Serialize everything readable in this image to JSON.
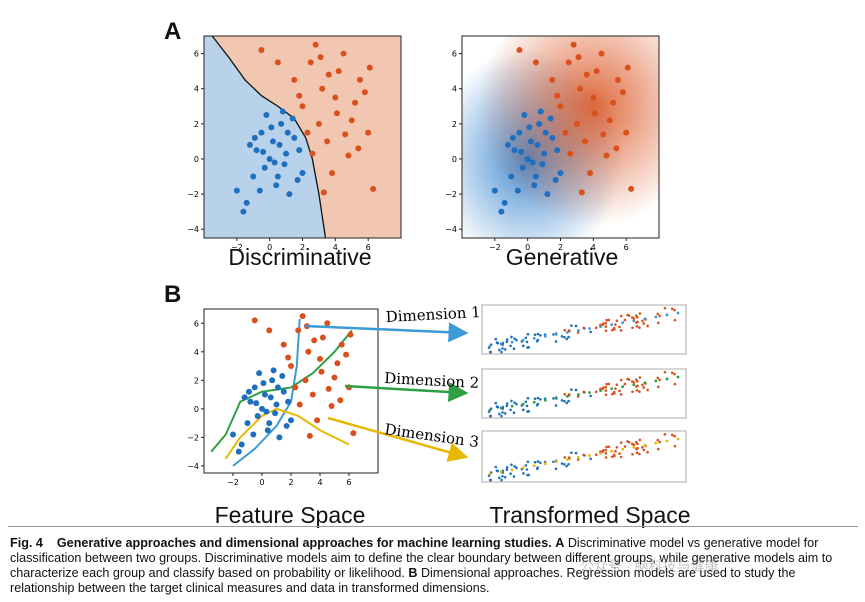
{
  "panel_a_label": "A",
  "panel_b_label": "B",
  "plot_titles": {
    "discriminative": "Discriminative",
    "generative": "Generative",
    "feature_space": "Feature Space",
    "transformed_space": "Transformed Space"
  },
  "arrow_labels": {
    "dim1": "Dimension 1",
    "dim2": "Dimension 2",
    "dim3": "Dimension 3"
  },
  "caption": {
    "fig_label": "Fig. 4",
    "bold_title": "Generative approaches and dimensional approaches for machine learning studies.",
    "a_label": "A",
    "a_text": "Discriminative model vs generative model for classification between two groups. Discriminative models aim to define the clear boundary between different groups, while generative models aim to characterize each group and classify based on probability or likelihood.",
    "b_label": "B",
    "b_text": "Dimensional approaches. Regression models are used to study the relationship between the target clinical measures and data in transformed dimensions."
  },
  "watermark": "公众号 · 脑科技与健康",
  "colors": {
    "blue": "#1f6fbf",
    "orange": "#d9501c",
    "blue_bg": "#b7d2ea",
    "orange_bg": "#f2c7b2",
    "arrow_blue": "#3b9bd6",
    "arrow_green": "#2ea043",
    "arrow_yellow": "#e6b800"
  },
  "chart_data": [
    {
      "type": "scatter",
      "title": "Discriminative",
      "xlim": [
        -4,
        8
      ],
      "ylim": [
        -4.5,
        7
      ],
      "xticks": [
        -2,
        0,
        2,
        4,
        6
      ],
      "yticks": [
        -4,
        -2,
        0,
        2,
        4,
        6
      ],
      "series": [
        {
          "color": "blue",
          "points": [
            [
              -2,
              -1.8
            ],
            [
              -1.6,
              -3
            ],
            [
              -1.4,
              -2.5
            ],
            [
              -1,
              -1
            ],
            [
              -0.8,
              0.5
            ],
            [
              -0.5,
              1.5
            ],
            [
              -0.3,
              -0.5
            ],
            [
              0,
              0
            ],
            [
              0.2,
              1
            ],
            [
              0.5,
              -1
            ],
            [
              0.7,
              2
            ],
            [
              1,
              0.3
            ],
            [
              1.2,
              -2
            ],
            [
              1.5,
              1.2
            ],
            [
              -0.2,
              2.5
            ],
            [
              0.4,
              -1.5
            ],
            [
              -1.2,
              0.8
            ],
            [
              0.9,
              -0.3
            ],
            [
              1.8,
              0.5
            ],
            [
              0.1,
              1.8
            ],
            [
              -0.6,
              -1.8
            ],
            [
              1.4,
              2.3
            ],
            [
              2,
              -0.8
            ],
            [
              0.6,
              0.8
            ],
            [
              -0.9,
              1.2
            ],
            [
              1.1,
              1.5
            ],
            [
              0.3,
              -0.2
            ],
            [
              -0.4,
              0.4
            ],
            [
              1.7,
              -1.2
            ],
            [
              0.8,
              2.7
            ]
          ]
        },
        {
          "color": "orange",
          "points": [
            [
              -0.5,
              6.2
            ],
            [
              0.5,
              5.5
            ],
            [
              1.5,
              4.5
            ],
            [
              2,
              3
            ],
            [
              2.5,
              5.5
            ],
            [
              3,
              2
            ],
            [
              3.2,
              4
            ],
            [
              3.5,
              1
            ],
            [
              4,
              3.5
            ],
            [
              4.5,
              6
            ],
            [
              5,
              2.2
            ],
            [
              5.5,
              4.5
            ],
            [
              6,
              1.5
            ],
            [
              6.3,
              -1.7
            ],
            [
              4.8,
              0.2
            ],
            [
              3.8,
              -0.8
            ],
            [
              4.2,
              5
            ],
            [
              2.8,
              6.5
            ],
            [
              5.2,
              3.2
            ],
            [
              3.6,
              4.8
            ],
            [
              2.3,
              1.5
            ],
            [
              4.6,
              1.4
            ],
            [
              5.8,
              3.8
            ],
            [
              3.1,
              5.8
            ],
            [
              1.8,
              3.6
            ],
            [
              4.1,
              2.6
            ],
            [
              5.4,
              0.6
            ],
            [
              3.3,
              -1.9
            ],
            [
              2.6,
              0.3
            ],
            [
              6.1,
              5.2
            ]
          ]
        }
      ]
    },
    {
      "type": "scatter",
      "title": "Generative",
      "xlim": [
        -4,
        8
      ],
      "ylim": [
        -4.5,
        7
      ],
      "xticks": [
        -2,
        0,
        2,
        4,
        6
      ],
      "yticks": [
        -4,
        -2,
        0,
        2,
        4,
        6
      ],
      "series": [
        {
          "color": "blue",
          "points": [
            [
              -2,
              -1.8
            ],
            [
              -1.6,
              -3
            ],
            [
              -1.4,
              -2.5
            ],
            [
              -1,
              -1
            ],
            [
              -0.8,
              0.5
            ],
            [
              -0.5,
              1.5
            ],
            [
              -0.3,
              -0.5
            ],
            [
              0,
              0
            ],
            [
              0.2,
              1
            ],
            [
              0.5,
              -1
            ],
            [
              0.7,
              2
            ],
            [
              1,
              0.3
            ],
            [
              1.2,
              -2
            ],
            [
              1.5,
              1.2
            ],
            [
              -0.2,
              2.5
            ],
            [
              0.4,
              -1.5
            ],
            [
              -1.2,
              0.8
            ],
            [
              0.9,
              -0.3
            ],
            [
              1.8,
              0.5
            ],
            [
              0.1,
              1.8
            ],
            [
              -0.6,
              -1.8
            ],
            [
              1.4,
              2.3
            ],
            [
              2,
              -0.8
            ],
            [
              0.6,
              0.8
            ],
            [
              -0.9,
              1.2
            ],
            [
              1.1,
              1.5
            ],
            [
              0.3,
              -0.2
            ],
            [
              -0.4,
              0.4
            ],
            [
              1.7,
              -1.2
            ],
            [
              0.8,
              2.7
            ]
          ]
        },
        {
          "color": "orange",
          "points": [
            [
              -0.5,
              6.2
            ],
            [
              0.5,
              5.5
            ],
            [
              1.5,
              4.5
            ],
            [
              2,
              3
            ],
            [
              2.5,
              5.5
            ],
            [
              3,
              2
            ],
            [
              3.2,
              4
            ],
            [
              3.5,
              1
            ],
            [
              4,
              3.5
            ],
            [
              4.5,
              6
            ],
            [
              5,
              2.2
            ],
            [
              5.5,
              4.5
            ],
            [
              6,
              1.5
            ],
            [
              6.3,
              -1.7
            ],
            [
              4.8,
              0.2
            ],
            [
              3.8,
              -0.8
            ],
            [
              4.2,
              5
            ],
            [
              2.8,
              6.5
            ],
            [
              5.2,
              3.2
            ],
            [
              3.6,
              4.8
            ],
            [
              2.3,
              1.5
            ],
            [
              4.6,
              1.4
            ],
            [
              5.8,
              3.8
            ],
            [
              3.1,
              5.8
            ],
            [
              1.8,
              3.6
            ],
            [
              4.1,
              2.6
            ],
            [
              5.4,
              0.6
            ],
            [
              3.3,
              -1.9
            ],
            [
              2.6,
              0.3
            ],
            [
              6.1,
              5.2
            ]
          ]
        }
      ]
    },
    {
      "type": "scatter",
      "title": "Feature Space",
      "xlim": [
        -4,
        8
      ],
      "ylim": [
        -4.5,
        7
      ],
      "xticks": [
        -2,
        0,
        2,
        4,
        6
      ],
      "yticks": [
        -4,
        -2,
        0,
        2,
        4,
        6
      ],
      "series": [
        {
          "color": "blue",
          "points": [
            [
              -2,
              -1.8
            ],
            [
              -1.6,
              -3
            ],
            [
              -1.4,
              -2.5
            ],
            [
              -1,
              -1
            ],
            [
              -0.8,
              0.5
            ],
            [
              -0.5,
              1.5
            ],
            [
              -0.3,
              -0.5
            ],
            [
              0,
              0
            ],
            [
              0.2,
              1
            ],
            [
              0.5,
              -1
            ],
            [
              0.7,
              2
            ],
            [
              1,
              0.3
            ],
            [
              1.2,
              -2
            ],
            [
              1.5,
              1.2
            ],
            [
              -0.2,
              2.5
            ],
            [
              0.4,
              -1.5
            ],
            [
              -1.2,
              0.8
            ],
            [
              0.9,
              -0.3
            ],
            [
              1.8,
              0.5
            ],
            [
              0.1,
              1.8
            ],
            [
              -0.6,
              -1.8
            ],
            [
              1.4,
              2.3
            ],
            [
              2,
              -0.8
            ],
            [
              0.6,
              0.8
            ],
            [
              -0.9,
              1.2
            ],
            [
              1.1,
              1.5
            ],
            [
              0.3,
              -0.2
            ],
            [
              -0.4,
              0.4
            ],
            [
              1.7,
              -1.2
            ],
            [
              0.8,
              2.7
            ]
          ]
        },
        {
          "color": "orange",
          "points": [
            [
              -0.5,
              6.2
            ],
            [
              0.5,
              5.5
            ],
            [
              1.5,
              4.5
            ],
            [
              2,
              3
            ],
            [
              2.5,
              5.5
            ],
            [
              3,
              2
            ],
            [
              3.2,
              4
            ],
            [
              3.5,
              1
            ],
            [
              4,
              3.5
            ],
            [
              4.5,
              6
            ],
            [
              5,
              2.2
            ],
            [
              5.5,
              4.5
            ],
            [
              6,
              1.5
            ],
            [
              6.3,
              -1.7
            ],
            [
              4.8,
              0.2
            ],
            [
              3.8,
              -0.8
            ],
            [
              4.2,
              5
            ],
            [
              2.8,
              6.5
            ],
            [
              5.2,
              3.2
            ],
            [
              3.6,
              4.8
            ],
            [
              2.3,
              1.5
            ],
            [
              4.6,
              1.4
            ],
            [
              5.8,
              3.8
            ],
            [
              3.1,
              5.8
            ],
            [
              1.8,
              3.6
            ],
            [
              4.1,
              2.6
            ],
            [
              5.4,
              0.6
            ],
            [
              3.3,
              -1.9
            ],
            [
              2.6,
              0.3
            ],
            [
              6.1,
              5.2
            ]
          ]
        }
      ]
    }
  ]
}
